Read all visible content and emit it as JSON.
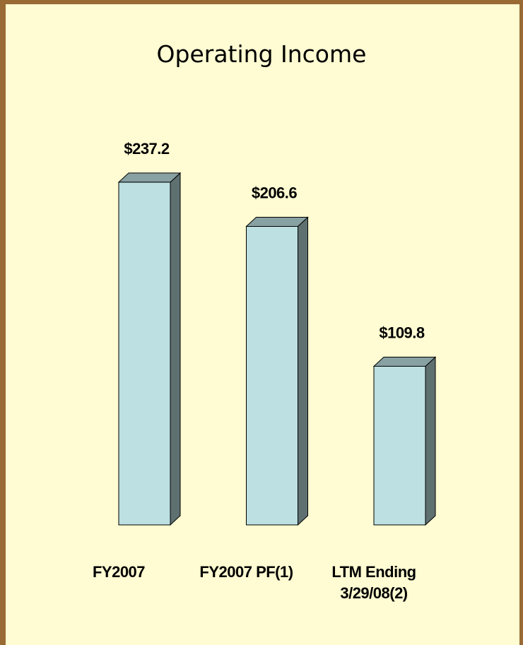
{
  "chart_data": {
    "type": "bar",
    "title": "Operating Income",
    "categories": [
      "FY2007",
      "FY2007 PF(1)",
      "LTM Ending\n3/29/08(2)"
    ],
    "values": [
      237.2,
      206.6,
      109.8
    ],
    "value_labels": [
      "$237.2",
      "$206.6",
      "$109.8"
    ],
    "color": "#bde0e2"
  }
}
